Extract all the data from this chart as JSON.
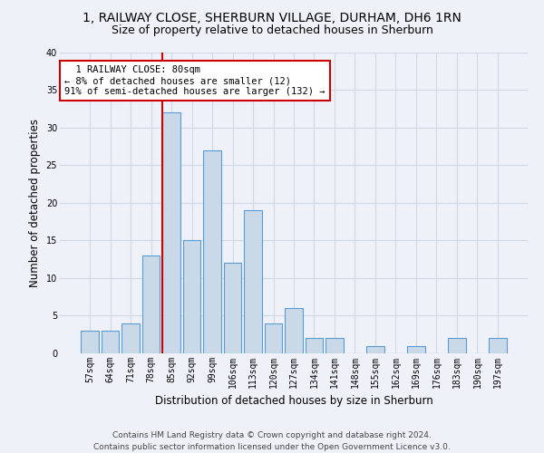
{
  "title": "1, RAILWAY CLOSE, SHERBURN VILLAGE, DURHAM, DH6 1RN",
  "subtitle": "Size of property relative to detached houses in Sherburn",
  "xlabel": "Distribution of detached houses by size in Sherburn",
  "ylabel": "Number of detached properties",
  "bar_labels": [
    "57sqm",
    "64sqm",
    "71sqm",
    "78sqm",
    "85sqm",
    "92sqm",
    "99sqm",
    "106sqm",
    "113sqm",
    "120sqm",
    "127sqm",
    "134sqm",
    "141sqm",
    "148sqm",
    "155sqm",
    "162sqm",
    "169sqm",
    "176sqm",
    "183sqm",
    "190sqm",
    "197sqm"
  ],
  "bar_values": [
    3,
    3,
    4,
    13,
    32,
    15,
    27,
    12,
    19,
    4,
    6,
    2,
    2,
    0,
    1,
    0,
    1,
    0,
    2,
    0,
    2
  ],
  "bar_color": "#c9d9e8",
  "bar_edgecolor": "#5b9bd5",
  "grid_color": "#d0d8e4",
  "background_color": "#eef2f8",
  "property_line_color": "#cc0000",
  "annotation_line1": "  1 RAILWAY CLOSE: 80sqm",
  "annotation_line2": "← 8% of detached houses are smaller (12)",
  "annotation_line3": "91% of semi-detached houses are larger (132) →",
  "annotation_box_color": "#ffffff",
  "annotation_box_edgecolor": "#cc0000",
  "ylim": [
    0,
    40
  ],
  "yticks": [
    0,
    5,
    10,
    15,
    20,
    25,
    30,
    35,
    40
  ],
  "footer_line1": "Contains HM Land Registry data © Crown copyright and database right 2024.",
  "footer_line2": "Contains public sector information licensed under the Open Government Licence v3.0.",
  "title_fontsize": 10,
  "subtitle_fontsize": 9,
  "tick_fontsize": 7,
  "ylabel_fontsize": 8.5,
  "xlabel_fontsize": 8.5,
  "annotation_fontsize": 7.5,
  "footer_fontsize": 6.5,
  "line_x_index": 3.575
}
